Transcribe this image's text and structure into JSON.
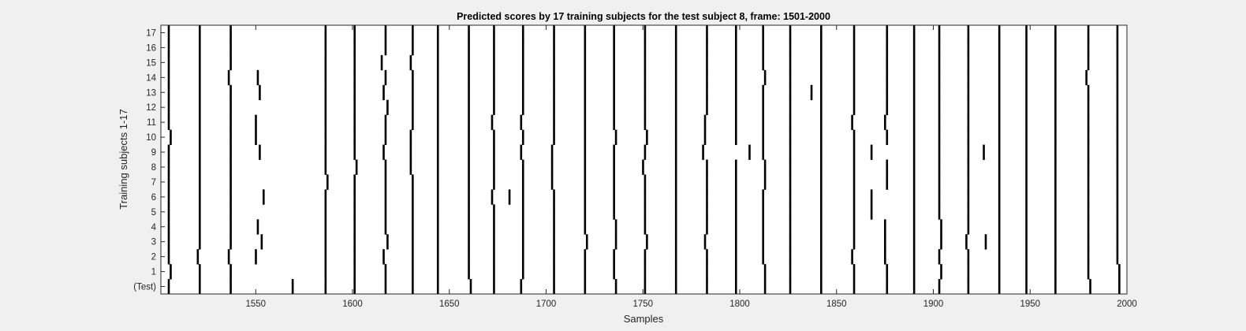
{
  "chart_data": {
    "type": "event-raster",
    "title": "Predicted scores by 17 training subjects for the test subject 8, frame: 1501-2000",
    "xlabel": "Samples",
    "ylabel": "Training subjects 1-17",
    "xlim": [
      1501,
      2000
    ],
    "xticks": [
      1550,
      1600,
      1650,
      1700,
      1750,
      1800,
      1850,
      1900,
      1950,
      2000
    ],
    "rows": [
      "(Test)",
      "1",
      "2",
      "3",
      "4",
      "5",
      "6",
      "7",
      "8",
      "9",
      "10",
      "11",
      "12",
      "13",
      "14",
      "15",
      "16",
      "17"
    ],
    "grid": false,
    "colors": {
      "background": "#f0f0f0",
      "axes": "#ffffff",
      "event": "#000000"
    },
    "events": [
      [
        1505,
        1521,
        1537,
        1569,
        1586,
        1601,
        1617,
        1631,
        1644,
        1661,
        1673,
        1687,
        1704,
        1720,
        1736,
        1751,
        1767,
        1783,
        1798,
        1813,
        1826,
        1842,
        1859,
        1876,
        1890,
        1903,
        1918,
        1934,
        1948,
        1963,
        1981,
        1996
      ],
      [
        1506,
        1521,
        1537,
        1586,
        1601,
        1617,
        1631,
        1644,
        1660,
        1673,
        1688,
        1704,
        1720,
        1735,
        1751,
        1767,
        1783,
        1798,
        1813,
        1826,
        1842,
        1859,
        1876,
        1890,
        1904,
        1918,
        1934,
        1948,
        1963,
        1980,
        1996
      ],
      [
        1505,
        1520,
        1536,
        1550,
        1586,
        1601,
        1616,
        1631,
        1644,
        1660,
        1673,
        1688,
        1704,
        1720,
        1735,
        1751,
        1767,
        1783,
        1798,
        1812,
        1826,
        1842,
        1858,
        1875,
        1890,
        1903,
        1918,
        1934,
        1948,
        1963,
        1980,
        1995
      ],
      [
        1505,
        1521,
        1537,
        1553,
        1586,
        1601,
        1618,
        1631,
        1644,
        1660,
        1673,
        1688,
        1704,
        1721,
        1736,
        1752,
        1767,
        1782,
        1798,
        1812,
        1826,
        1842,
        1859,
        1875,
        1890,
        1904,
        1917,
        1927,
        1934,
        1948,
        1963,
        1980,
        1995
      ],
      [
        1505,
        1521,
        1537,
        1551,
        1586,
        1601,
        1617,
        1631,
        1644,
        1660,
        1673,
        1688,
        1704,
        1720,
        1736,
        1751,
        1767,
        1783,
        1798,
        1812,
        1826,
        1842,
        1859,
        1875,
        1890,
        1904,
        1918,
        1934,
        1948,
        1963,
        1980,
        1995
      ],
      [
        1505,
        1521,
        1537,
        1586,
        1601,
        1617,
        1631,
        1644,
        1660,
        1673,
        1688,
        1704,
        1720,
        1735,
        1751,
        1767,
        1783,
        1798,
        1812,
        1826,
        1842,
        1859,
        1868,
        1890,
        1903,
        1918,
        1934,
        1948,
        1963,
        1980,
        1995
      ],
      [
        1505,
        1521,
        1537,
        1554,
        1586,
        1601,
        1617,
        1631,
        1644,
        1660,
        1672,
        1681,
        1688,
        1704,
        1720,
        1735,
        1751,
        1767,
        1783,
        1798,
        1812,
        1826,
        1842,
        1859,
        1868,
        1890,
        1903,
        1918,
        1934,
        1948,
        1963,
        1980,
        1995
      ],
      [
        1505,
        1521,
        1537,
        1587,
        1601,
        1617,
        1631,
        1644,
        1660,
        1673,
        1688,
        1703,
        1720,
        1735,
        1751,
        1767,
        1783,
        1798,
        1813,
        1826,
        1842,
        1859,
        1876,
        1890,
        1903,
        1918,
        1934,
        1948,
        1963,
        1980,
        1995
      ],
      [
        1505,
        1521,
        1537,
        1586,
        1602,
        1617,
        1630,
        1644,
        1660,
        1673,
        1688,
        1703,
        1720,
        1735,
        1750,
        1767,
        1783,
        1798,
        1813,
        1826,
        1842,
        1859,
        1876,
        1890,
        1903,
        1918,
        1934,
        1948,
        1963,
        1980,
        1995
      ],
      [
        1505,
        1521,
        1537,
        1552,
        1586,
        1601,
        1616,
        1630,
        1644,
        1660,
        1673,
        1687,
        1703,
        1720,
        1735,
        1751,
        1767,
        1781,
        1805,
        1812,
        1826,
        1842,
        1859,
        1868,
        1890,
        1903,
        1918,
        1926,
        1934,
        1948,
        1963,
        1980,
        1995
      ],
      [
        1506,
        1521,
        1537,
        1550,
        1586,
        1601,
        1617,
        1630,
        1644,
        1660,
        1673,
        1688,
        1704,
        1720,
        1736,
        1752,
        1767,
        1782,
        1798,
        1812,
        1826,
        1842,
        1859,
        1876,
        1890,
        1903,
        1918,
        1934,
        1948,
        1963,
        1980,
        1995
      ],
      [
        1505,
        1521,
        1537,
        1550,
        1586,
        1601,
        1617,
        1631,
        1644,
        1660,
        1672,
        1687,
        1704,
        1720,
        1735,
        1751,
        1767,
        1782,
        1798,
        1812,
        1826,
        1842,
        1858,
        1875,
        1890,
        1903,
        1918,
        1934,
        1948,
        1963,
        1980,
        1995
      ],
      [
        1505,
        1521,
        1537,
        1586,
        1601,
        1618,
        1631,
        1644,
        1660,
        1673,
        1688,
        1704,
        1720,
        1735,
        1751,
        1767,
        1783,
        1798,
        1812,
        1826,
        1842,
        1859,
        1876,
        1890,
        1903,
        1918,
        1934,
        1948,
        1963,
        1980,
        1995
      ],
      [
        1505,
        1521,
        1537,
        1552,
        1586,
        1601,
        1616,
        1631,
        1644,
        1660,
        1673,
        1688,
        1704,
        1720,
        1735,
        1751,
        1767,
        1783,
        1798,
        1812,
        1826,
        1837,
        1842,
        1859,
        1876,
        1890,
        1903,
        1918,
        1934,
        1948,
        1963,
        1980,
        1995
      ],
      [
        1505,
        1521,
        1536,
        1551,
        1586,
        1601,
        1617,
        1631,
        1644,
        1660,
        1673,
        1688,
        1704,
        1720,
        1735,
        1751,
        1767,
        1783,
        1798,
        1813,
        1826,
        1842,
        1859,
        1876,
        1890,
        1903,
        1918,
        1934,
        1948,
        1963,
        1979,
        1995
      ],
      [
        1505,
        1521,
        1537,
        1586,
        1601,
        1615,
        1630,
        1644,
        1660,
        1673,
        1688,
        1704,
        1720,
        1735,
        1751,
        1767,
        1783,
        1798,
        1812,
        1826,
        1842,
        1859,
        1876,
        1890,
        1903,
        1918,
        1934,
        1948,
        1963,
        1980,
        1995
      ],
      [
        1505,
        1521,
        1537,
        1586,
        1601,
        1617,
        1631,
        1644,
        1660,
        1673,
        1688,
        1704,
        1720,
        1735,
        1751,
        1767,
        1783,
        1798,
        1812,
        1826,
        1842,
        1859,
        1876,
        1890,
        1903,
        1918,
        1934,
        1948,
        1963,
        1980,
        1995
      ],
      [
        1505,
        1521,
        1537,
        1586,
        1601,
        1617,
        1631,
        1644,
        1660,
        1673,
        1688,
        1704,
        1720,
        1735,
        1751,
        1767,
        1783,
        1798,
        1812,
        1826,
        1842,
        1859,
        1876,
        1890,
        1903,
        1918,
        1934,
        1948,
        1963,
        1980,
        1995
      ]
    ]
  }
}
